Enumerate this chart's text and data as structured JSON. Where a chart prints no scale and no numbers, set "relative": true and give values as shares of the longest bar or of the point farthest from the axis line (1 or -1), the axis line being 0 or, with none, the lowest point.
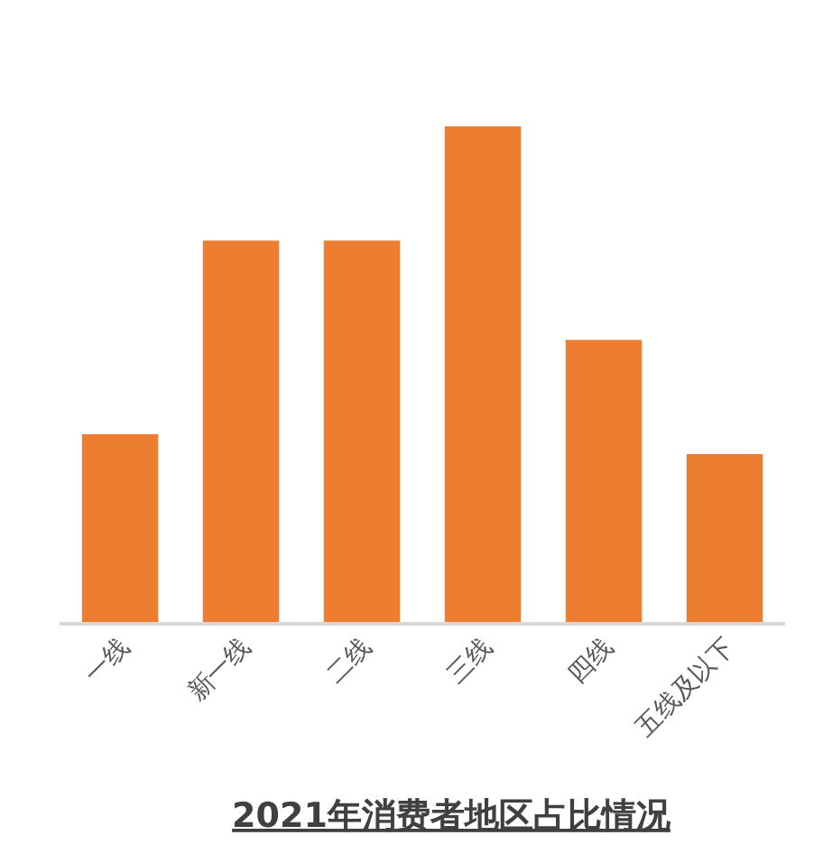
{
  "chart_data": {
    "type": "bar",
    "title": "2021年消费者地区占比情况",
    "categories": [
      "一线",
      "新一线",
      "二线",
      "三线",
      "四线",
      "五线及以下"
    ],
    "values": [
      0.38,
      0.77,
      0.77,
      1,
      0.57,
      0.34
    ],
    "color": "#ed7d31",
    "relative": true
  }
}
